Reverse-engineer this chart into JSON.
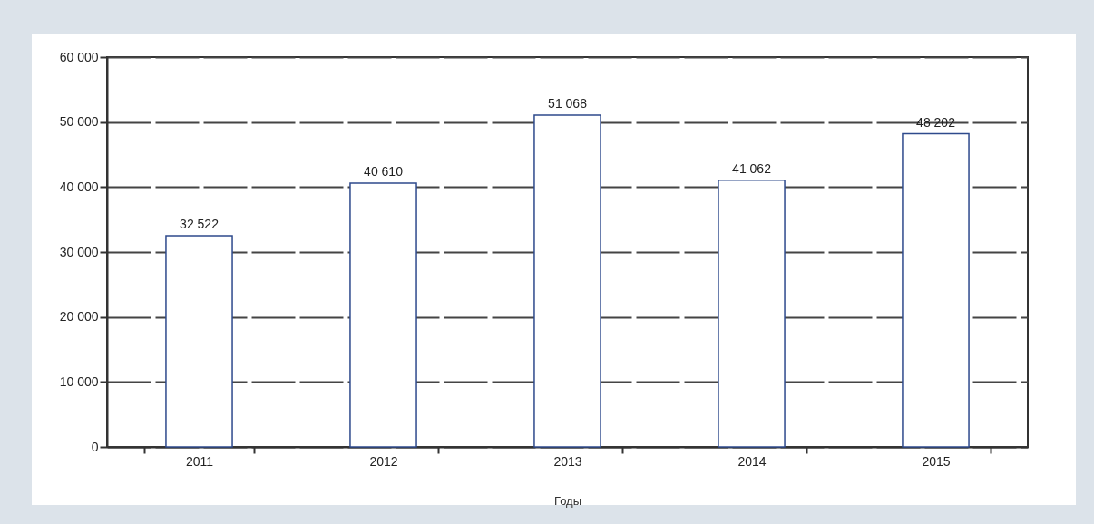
{
  "chart_data": {
    "type": "bar",
    "xlabel": "Годы",
    "categories": [
      "2011",
      "2012",
      "2013",
      "2014",
      "2015"
    ],
    "values": [
      32522,
      40610,
      51068,
      41062,
      48202
    ],
    "color": "#2e4a8c",
    "ylim": [
      0,
      60000
    ],
    "yticks": [
      0,
      10000,
      20000,
      30000,
      40000,
      50000,
      60000
    ],
    "grid": "y",
    "data_labels": true
  }
}
